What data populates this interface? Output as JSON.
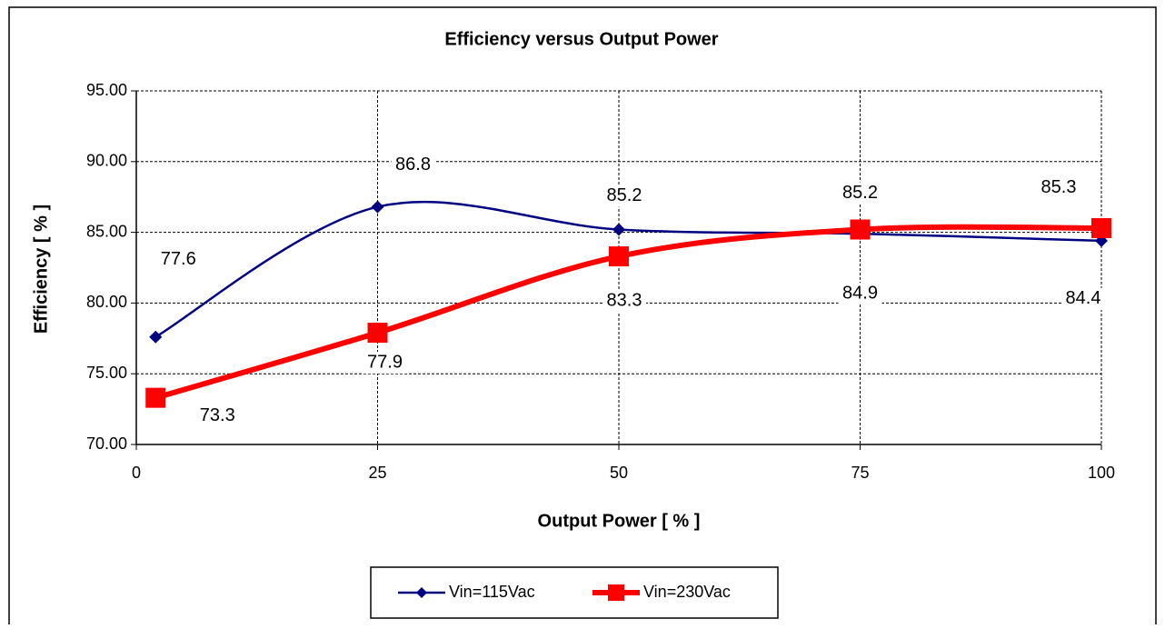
{
  "chart_data": {
    "type": "line",
    "title": "Efficiency versus Output Power",
    "x_label": "Output Power [ % ]",
    "y_label": "Efficiency [ % ]",
    "x": [
      2,
      25,
      50,
      75,
      100
    ],
    "series": [
      {
        "name": "Vin=115Vac",
        "color": "#000080",
        "marker": "diamond",
        "values": [
          77.6,
          86.8,
          85.2,
          84.9,
          84.4
        ]
      },
      {
        "name": "Vin=230Vac",
        "color": "#ff0000",
        "marker": "square",
        "values": [
          73.3,
          77.9,
          83.3,
          85.2,
          85.3
        ]
      }
    ],
    "xlim": [
      0,
      100
    ],
    "xticks": [
      0,
      25,
      50,
      75,
      100
    ],
    "ylim": [
      70,
      95
    ],
    "yticks": [
      {
        "value": 70,
        "label": "70.00"
      },
      {
        "value": 75,
        "label": "75.00"
      },
      {
        "value": 80,
        "label": "80.00"
      },
      {
        "value": 85,
        "label": "85.00"
      },
      {
        "value": 90,
        "label": "90.00"
      },
      {
        "value": 95,
        "label": "95.00"
      }
    ],
    "grid": true,
    "smooth": true,
    "legend": "bottom"
  }
}
